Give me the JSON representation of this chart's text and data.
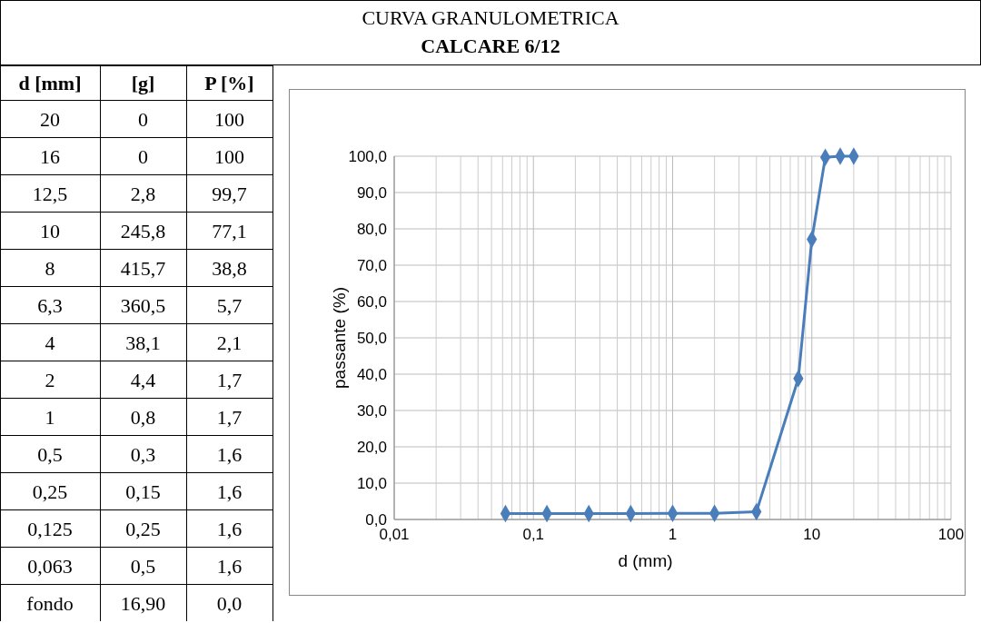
{
  "chart_data": [
    {
      "type": "other",
      "categories": [
        "d [mm]",
        "[g]",
        "P [%]"
      ],
      "cell_labels": [
        [
          "20",
          "0",
          "100"
        ],
        [
          "16",
          "0",
          "100"
        ],
        [
          "12,5",
          "2,8",
          "99,7"
        ],
        [
          "10",
          "245,8",
          "77,1"
        ],
        [
          "8",
          "415,7",
          "38,8"
        ],
        [
          "6,3",
          "360,5",
          "5,7"
        ],
        [
          "4",
          "38,1",
          "2,1"
        ],
        [
          "2",
          "4,4",
          "1,7"
        ],
        [
          "1",
          "0,8",
          "1,7"
        ],
        [
          "0,5",
          "0,3",
          "1,6"
        ],
        [
          "0,25",
          "0,15",
          "1,6"
        ],
        [
          "0,125",
          "0,25",
          "1,6"
        ],
        [
          "0,063",
          "0,5",
          "1,6"
        ],
        [
          "fondo",
          "16,90",
          "0,0"
        ]
      ]
    },
    {
      "type": "line",
      "title": "CURVA GRANULOMETRICA",
      "subtitle": "CALCARE 6/12",
      "xlabel": "d (mm)",
      "ylabel": "passante (%)",
      "x": [
        0.063,
        0.125,
        0.25,
        0.5,
        1,
        2,
        4,
        8,
        10,
        12.5,
        16,
        20
      ],
      "series": [
        {
          "color": "#4a7ebb",
          "values": [
            1.6,
            1.6,
            1.6,
            1.6,
            1.7,
            1.7,
            2.1,
            38.8,
            77.1,
            99.7,
            100,
            100
          ]
        }
      ],
      "log": "x",
      "xlim": [
        0.01,
        100
      ],
      "xticks": [
        {
          "value": 0.01,
          "label": "0,01"
        },
        {
          "value": 0.1,
          "label": "0,1"
        },
        {
          "value": 1,
          "label": "1"
        },
        {
          "value": 10,
          "label": "10"
        },
        {
          "value": 100,
          "label": "100"
        }
      ],
      "ylim": [
        0,
        100
      ],
      "yticks": [
        {
          "value": 0,
          "label": "0,0"
        },
        {
          "value": 10,
          "label": "10,0"
        },
        {
          "value": 20,
          "label": "20,0"
        },
        {
          "value": 30,
          "label": "30,0"
        },
        {
          "value": 40,
          "label": "40,0"
        },
        {
          "value": 50,
          "label": "50,0"
        },
        {
          "value": 60,
          "label": "60,0"
        },
        {
          "value": 70,
          "label": "70,0"
        },
        {
          "value": 80,
          "label": "80,0"
        },
        {
          "value": 90,
          "label": "90,0"
        },
        {
          "value": 100,
          "label": "100,0"
        }
      ],
      "grid": true,
      "marker": "diamond",
      "line_style": "solid"
    }
  ]
}
